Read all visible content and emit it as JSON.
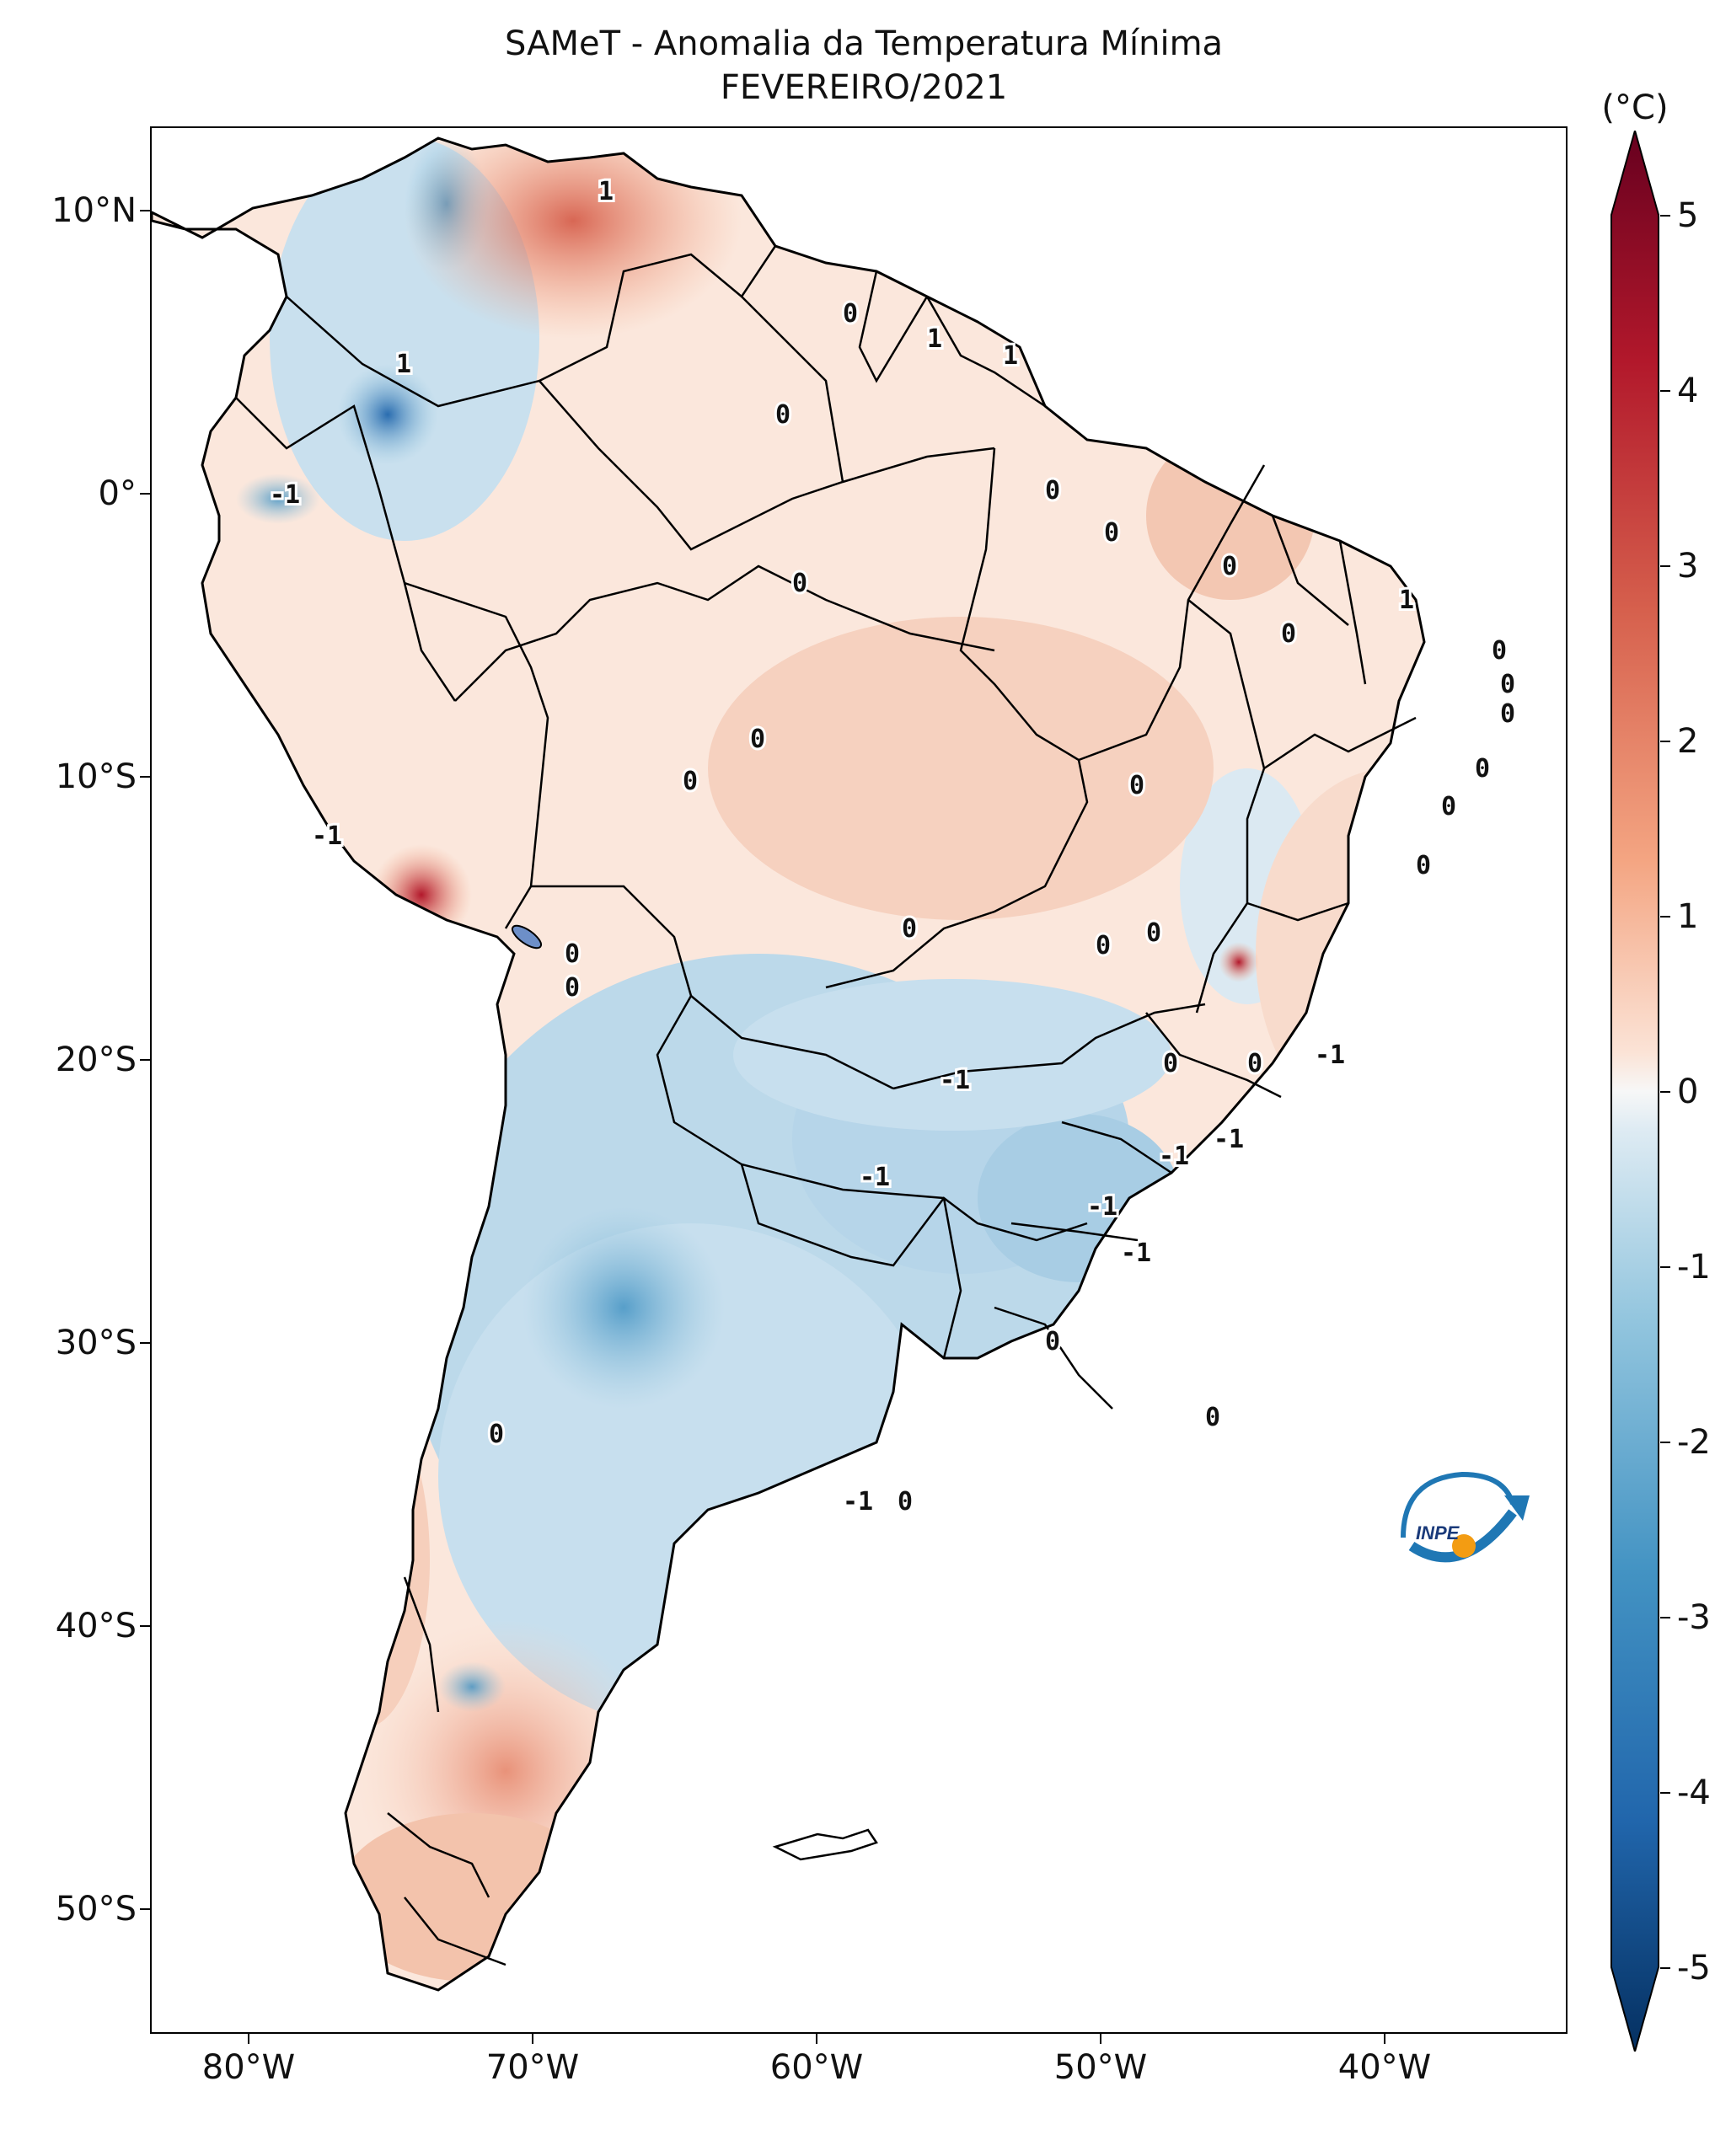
{
  "title": "SAMeT - Anomalia da Temperatura Mínima",
  "subtitle": "FEVEREIRO/2021",
  "colorbar": {
    "unit": "(°C)",
    "ticks": [
      "5",
      "4",
      "3",
      "2",
      "1",
      "0",
      "-1",
      "-2",
      "-3",
      "-4",
      "-5"
    ],
    "colors": {
      "max": "#67001f",
      "warm": "#d6604d",
      "light_warm": "#f4a582",
      "neutral": "#f7f7f7",
      "light_cool": "#92c5de",
      "cool": "#4393c3",
      "min": "#053061"
    }
  },
  "axes": {
    "lat_labels": [
      "10°N",
      "0°",
      "10°S",
      "20°S",
      "30°S",
      "40°S",
      "50°S"
    ],
    "lon_labels": [
      "80°W",
      "70°W",
      "60°W",
      "50°W",
      "40°W"
    ]
  },
  "contour_labels": [
    "1",
    "0",
    "1",
    "1",
    "1",
    "0",
    "-1",
    "0",
    "0",
    "0",
    "0",
    "0",
    "1",
    "0",
    "0",
    "0",
    "0",
    "0",
    "0",
    "0",
    "0",
    "0",
    "0",
    "0",
    "0",
    "-1",
    "0",
    "-1",
    "0",
    "0",
    "0",
    "-1",
    "-1",
    "-1",
    "-1",
    "-1",
    "-1",
    "0",
    "0",
    "0",
    "-1",
    "0"
  ],
  "logo": {
    "text": "INPE",
    "icon": "inpe-logo"
  }
}
